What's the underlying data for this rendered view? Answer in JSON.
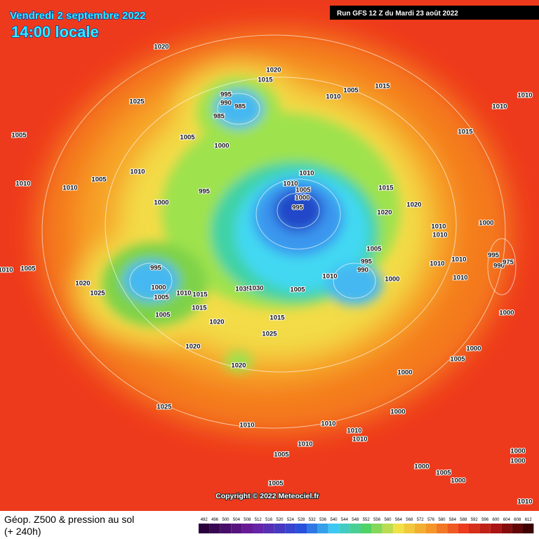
{
  "header": {
    "date": "Vendredi 2 septembre 2022",
    "time": "14:00 locale"
  },
  "run_info": "Run GFS 12 Z du Mardi 23 août 2022",
  "isobar_labels": [
    "1020",
    "1020",
    "1015",
    "1025",
    "995",
    "990",
    "985",
    "985",
    "1005",
    "1000",
    "1010",
    "1005",
    "1015",
    "1010",
    "1010",
    "1015",
    "1005",
    "1010",
    "1005",
    "1010",
    "1010",
    "995",
    "1000",
    "1010",
    "1010",
    "1005",
    "1000",
    "995",
    "1015",
    "1020",
    "1020",
    "1010",
    "1010",
    "1000",
    "1005",
    "995",
    "990",
    "1010",
    "1010",
    "995",
    "990",
    "975",
    "1010",
    "1005",
    "1000",
    "1010",
    "995",
    "1000",
    "1005",
    "1010",
    "1015",
    "1015",
    "1020",
    "1025",
    "1005",
    "1035",
    "1030",
    "1015",
    "1020",
    "1025",
    "1000",
    "1020",
    "1000",
    "1005",
    "1020",
    "1000",
    "1000",
    "1025",
    "1010",
    "1010",
    "1010",
    "1010",
    "1010",
    "1000",
    "1000",
    "1005",
    "1000",
    "1005",
    "1000",
    "1005",
    "1010",
    "1005",
    "1010"
  ],
  "copyright": "Copyright © 2022 Meteociel.fr",
  "footer": {
    "title": "Géop. Z500 & pression au sol",
    "lead": "(+ 240h)"
  },
  "colorbar": {
    "ticks": [
      492,
      496,
      500,
      504,
      508,
      512,
      516,
      520,
      524,
      528,
      532,
      536,
      540,
      544,
      548,
      552,
      556,
      560,
      564,
      568,
      572,
      576,
      580,
      584,
      588,
      592,
      596,
      600,
      604,
      608,
      612
    ]
  }
}
